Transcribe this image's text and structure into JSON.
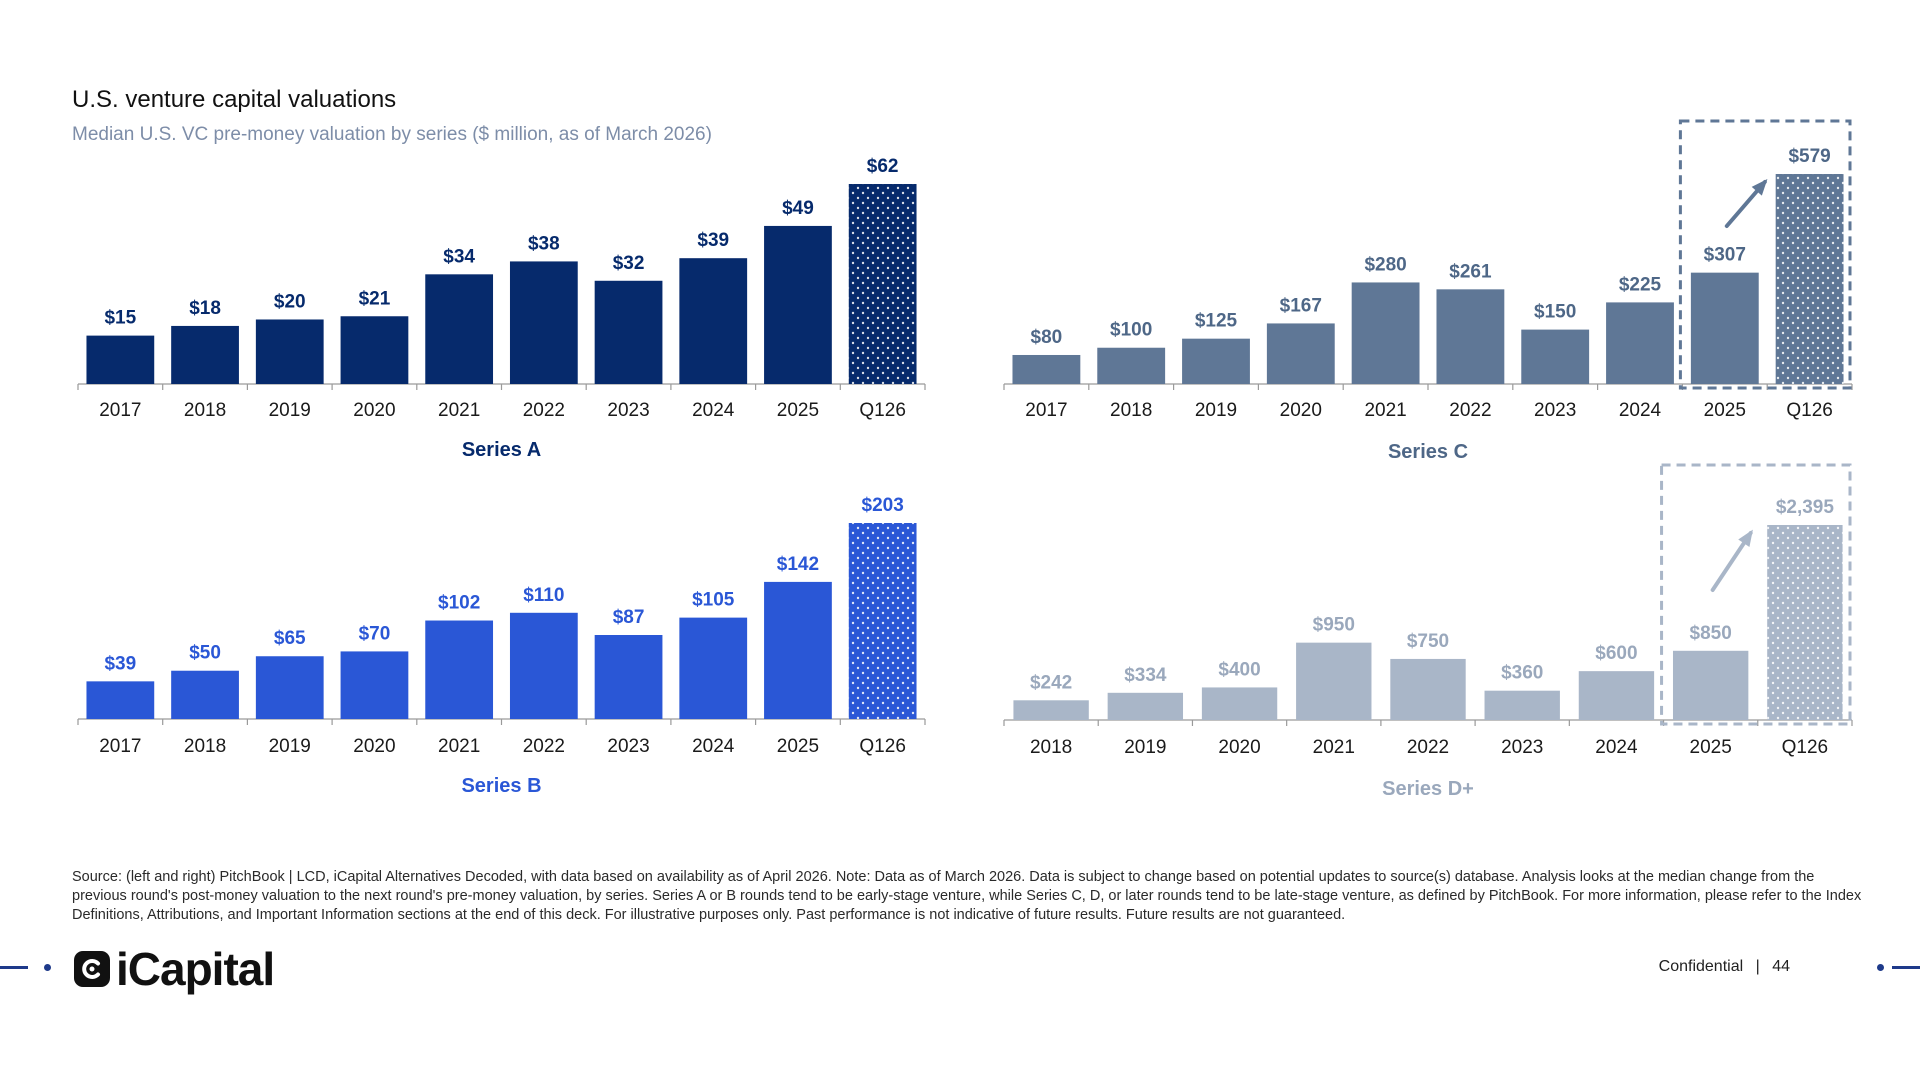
{
  "header": {
    "title": "U.S. venture capital valuations",
    "subtitle": "Median U.S. VC pre-money valuation by series ($ million, as of March 2026)"
  },
  "chart_data": [
    {
      "type": "bar",
      "title": "Series A",
      "categories": [
        "2017",
        "2018",
        "2019",
        "2020",
        "2021",
        "2022",
        "2023",
        "2024",
        "2025",
        "Q126"
      ],
      "values": [
        15,
        18,
        20,
        21,
        34,
        38,
        32,
        39,
        49,
        62
      ],
      "labels": [
        "$15",
        "$18",
        "$20",
        "$21",
        "$34",
        "$38",
        "$32",
        "$39",
        "$49",
        "$62"
      ],
      "ylim": [
        0,
        62
      ],
      "bar_color": "#062a6c",
      "label_color": "#062a6c",
      "highlight_last_dotted": true,
      "highlight_box": false
    },
    {
      "type": "bar",
      "title": "Series C",
      "categories": [
        "2017",
        "2018",
        "2019",
        "2020",
        "2021",
        "2022",
        "2023",
        "2024",
        "2025",
        "Q126"
      ],
      "values": [
        80,
        100,
        125,
        167,
        280,
        261,
        150,
        225,
        307,
        579
      ],
      "labels": [
        "$80",
        "$100",
        "$125",
        "$167",
        "$280",
        "$261",
        "$150",
        "$225",
        "$307",
        "$579"
      ],
      "ylim": [
        0,
        579
      ],
      "bar_color": "#5f7796",
      "label_color": "#4e6787",
      "highlight_last_dotted": true,
      "highlight_box": true
    },
    {
      "type": "bar",
      "title": "Series B",
      "categories": [
        "2017",
        "2018",
        "2019",
        "2020",
        "2021",
        "2022",
        "2023",
        "2024",
        "2025",
        "Q126"
      ],
      "values": [
        39,
        50,
        65,
        70,
        102,
        110,
        87,
        105,
        142,
        203
      ],
      "labels": [
        "$39",
        "$50",
        "$65",
        "$70",
        "$102",
        "$110",
        "$87",
        "$105",
        "$142",
        "$203"
      ],
      "ylim": [
        0,
        203
      ],
      "bar_color": "#2a57d6",
      "label_color": "#2a57d6",
      "highlight_last_dotted": true,
      "highlight_box": false
    },
    {
      "type": "bar",
      "title": "Series D+",
      "categories": [
        "2018",
        "2019",
        "2020",
        "2021",
        "2022",
        "2023",
        "2024",
        "2025",
        "Q126"
      ],
      "values": [
        242,
        334,
        400,
        950,
        750,
        360,
        600,
        850,
        2395
      ],
      "labels": [
        "$242",
        "$334",
        "$400",
        "$950",
        "$750",
        "$360",
        "$600",
        "$850",
        "$2,395"
      ],
      "ylim": [
        0,
        2395
      ],
      "bar_color": "#a9b6c8",
      "label_color": "#9aa8bc",
      "highlight_last_dotted": true,
      "highlight_box": true
    }
  ],
  "source_note": "Source: (left and right) PitchBook | LCD, iCapital Alternatives Decoded, with data based on availability as of April 2026. Note: Data as of March 2026. Data is subject to change based on potential updates to source(s) database. Analysis looks at the median change from the previous round's post-money valuation to the next round's pre-money valuation, by series. Series A or B rounds tend to be early-stage venture, while Series C, D, or later rounds tend to be late-stage venture, as defined by PitchBook. For more information, please refer to the Index Definitions, Attributions, and Important Information sections at the end of this deck. For illustrative purposes only. Past performance is not indicative of future results. Future results are not guaranteed.",
  "footer": {
    "logo_text": "iCapital",
    "confidential": "Confidential",
    "page_sep": "|",
    "page_number": "44"
  },
  "colors": {
    "brand": "#1e3a8a",
    "logo": "#111111"
  },
  "icons": {
    "logo_mark": "icapital-logo-icon",
    "trend_arrow": "arrow-up-right-icon"
  }
}
